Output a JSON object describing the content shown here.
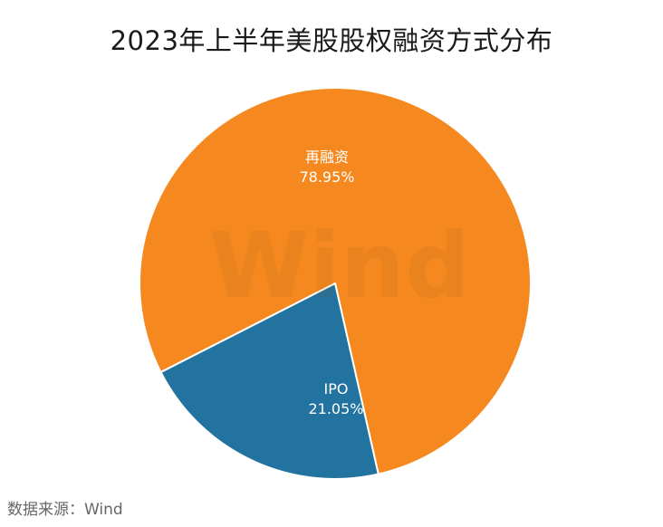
{
  "chart_data": {
    "type": "pie",
    "title": "2023年上半年美股股权融资方式分布",
    "categories": [
      "再融资",
      "IPO"
    ],
    "values": [
      78.95,
      21.05
    ],
    "value_labels": [
      "78.95%",
      "21.05%"
    ],
    "colors": [
      "#F5891F",
      "#22739F"
    ],
    "legend": "none"
  },
  "watermark": "Wind",
  "source": "数据来源：Wind"
}
